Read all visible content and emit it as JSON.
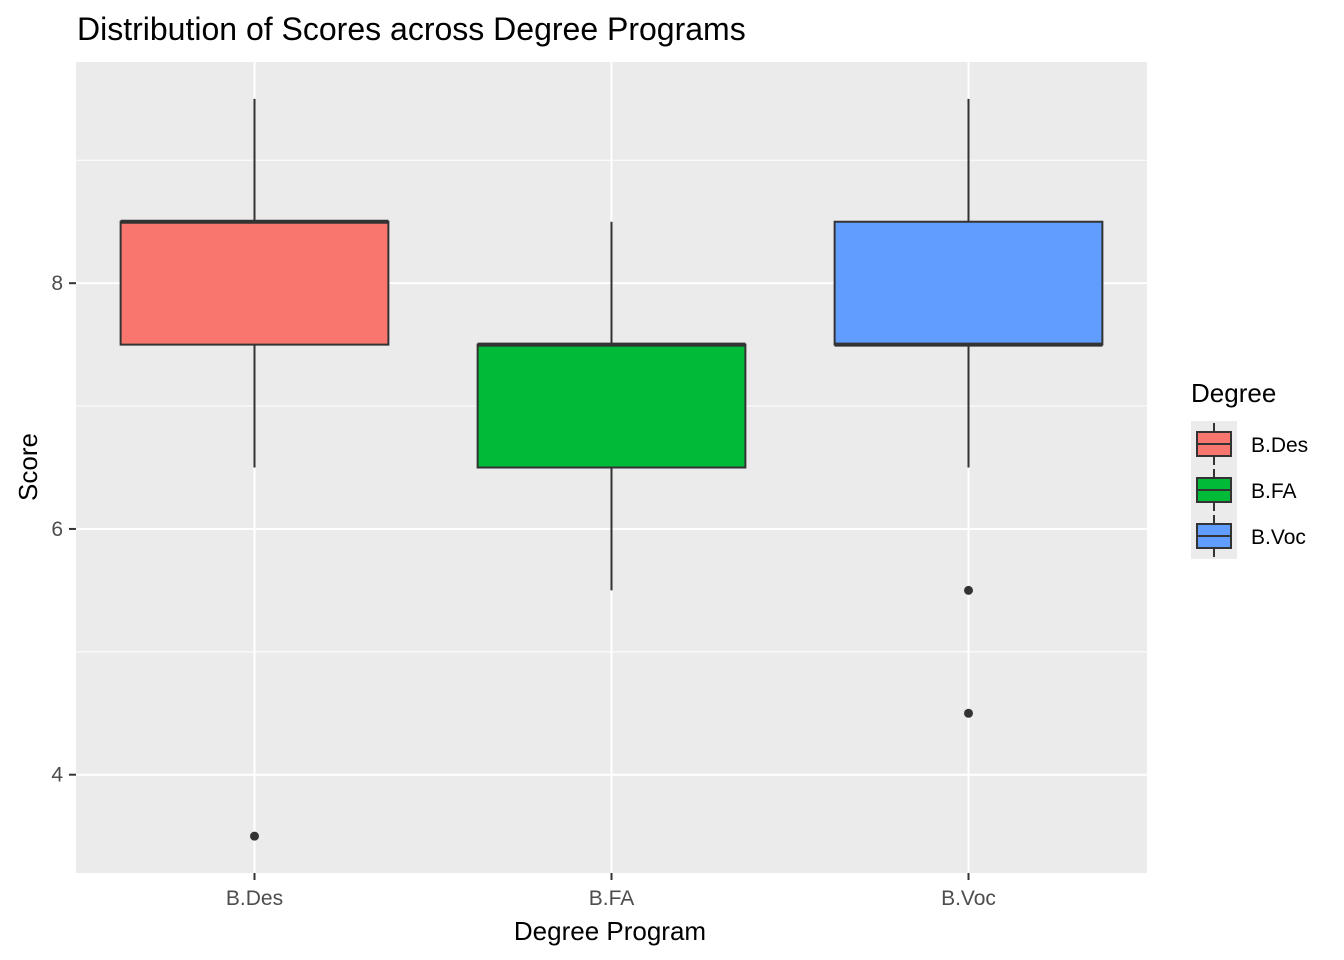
{
  "chart_data": {
    "type": "boxplot",
    "title": "Distribution of Scores across Degree Programs",
    "xlabel": "Degree Program",
    "ylabel": "Score",
    "ylim": [
      3.2,
      9.8
    ],
    "y_ticks": [
      4,
      6,
      8
    ],
    "y_minor_ticks": [
      5,
      7,
      9
    ],
    "grid": true,
    "panel_background": "#ebebeb",
    "legend": {
      "title": "Degree",
      "position": "right"
    },
    "categories": [
      "B.Des",
      "B.FA",
      "B.Voc"
    ],
    "series": [
      {
        "name": "B.Des",
        "color": "#f8766d",
        "min": 6.5,
        "q1": 7.5,
        "median": 8.5,
        "q3": 8.5,
        "max": 9.5,
        "outliers": [
          3.5
        ]
      },
      {
        "name": "B.FA",
        "color": "#00ba38",
        "min": 5.5,
        "q1": 6.5,
        "median": 7.5,
        "q3": 7.5,
        "max": 8.5,
        "outliers": []
      },
      {
        "name": "B.Voc",
        "color": "#619cff",
        "min": 6.5,
        "q1": 7.5,
        "median": 7.5,
        "q3": 8.5,
        "max": 9.5,
        "outliers": [
          5.5,
          4.5
        ]
      }
    ]
  }
}
